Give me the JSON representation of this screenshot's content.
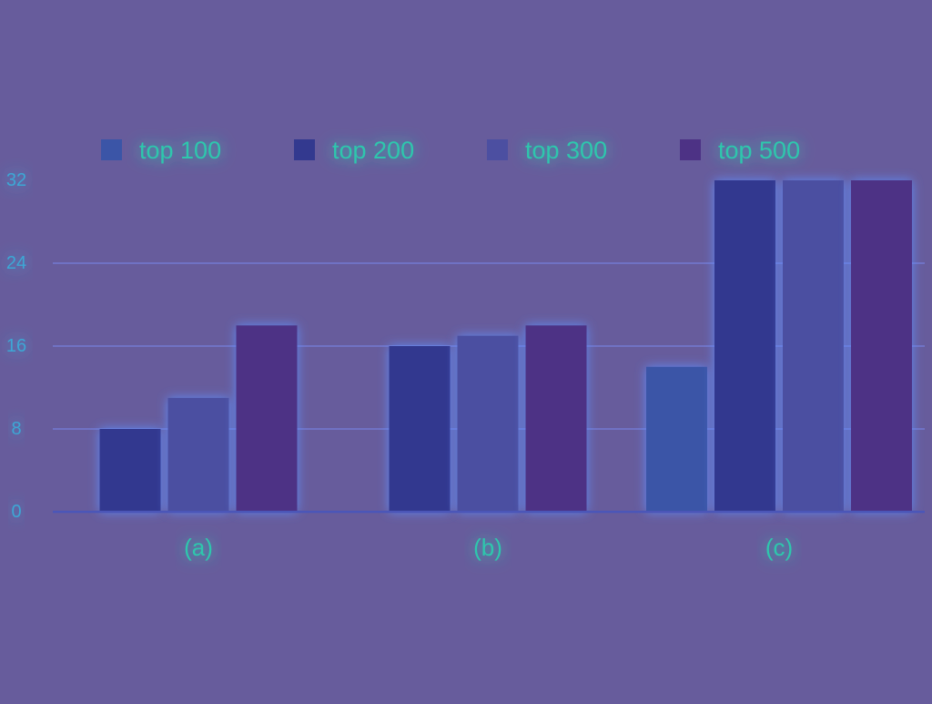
{
  "colors": {
    "background": "#675c9c",
    "gridline": "#7a86e8",
    "axis": "#4b56b8",
    "glow": "#5d8fff",
    "label_text": "#2fc7ad",
    "tick_text": "#3ea7d5"
  },
  "chart_data": {
    "type": "bar",
    "categories": [
      "(a)",
      "(b)",
      "(c)"
    ],
    "series": [
      {
        "name": "top 100",
        "values": [
          null,
          null,
          14
        ],
        "color": "#3b55a7"
      },
      {
        "name": "top 200",
        "values": [
          8,
          16,
          32
        ],
        "color": "#33398f"
      },
      {
        "name": "top 300",
        "values": [
          11,
          17,
          32
        ],
        "color": "#4c4fa1"
      },
      {
        "name": "top 500",
        "values": [
          18,
          18,
          32
        ],
        "color": "#4d3285"
      }
    ],
    "yticks": [
      0,
      8,
      16,
      24,
      32
    ],
    "ylim": [
      0,
      32
    ],
    "grid": true,
    "legend_position": "top",
    "title": "",
    "xlabel": "",
    "ylabel": ""
  }
}
